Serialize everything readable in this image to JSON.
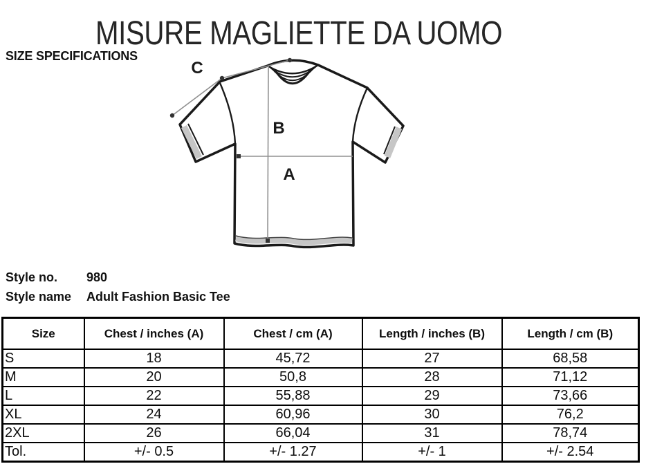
{
  "title": "MISURE MAGLIETTE DA UOMO",
  "subtitle": "SIZE SPECIFICATIONS",
  "diagram": {
    "labels": {
      "a": "A",
      "b": "B",
      "c": "C"
    }
  },
  "style_info": {
    "style_no_label": "Style no.",
    "style_no_value": "980",
    "style_name_label": "Style name",
    "style_name_value": "Adult Fashion Basic Tee"
  },
  "table": {
    "columns": [
      "Size",
      "Chest / inches (A)",
      "Chest / cm (A)",
      "Length / inches (B)",
      "Length / cm (B)"
    ],
    "rows": [
      [
        "S",
        "18",
        "45,72",
        "27",
        "68,58"
      ],
      [
        "M",
        "20",
        "50,8",
        "28",
        "71,12"
      ],
      [
        "L",
        "22",
        "55,88",
        "29",
        "73,66"
      ],
      [
        "XL",
        "24",
        "60,96",
        "30",
        "76,2"
      ],
      [
        "2XL",
        "26",
        "66,04",
        "31",
        "78,74"
      ],
      [
        "Tol.",
        "+/- 0.5",
        "+/- 1.27",
        "+/- 1",
        "+/- 2.54"
      ]
    ]
  },
  "colors": {
    "ink": "#1a1a1a",
    "measure_line": "#909090",
    "shade": "#c6c6c6",
    "background": "#ffffff"
  }
}
